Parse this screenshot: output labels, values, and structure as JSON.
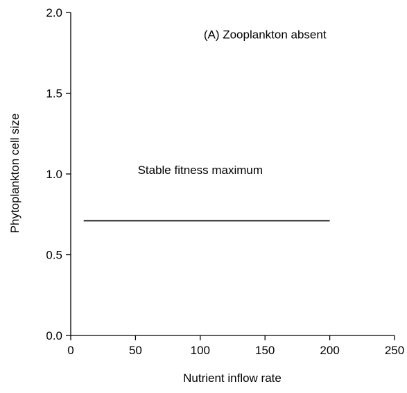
{
  "chart_data": {
    "type": "line",
    "title": "",
    "xlabel": "Nutrient inflow rate",
    "ylabel": "Phytoplankton cell size",
    "xlim": [
      0,
      250
    ],
    "ylim": [
      0,
      2
    ],
    "x_ticks": [
      0,
      50,
      100,
      150,
      200,
      250
    ],
    "y_ticks": [
      0,
      0.5,
      1,
      1.5,
      2
    ],
    "x_tick_labels": [
      "0",
      "50",
      "100",
      "150",
      "200",
      "250"
    ],
    "y_tick_labels": [
      "0.0",
      "0.5",
      "1.0",
      "1.5",
      "2.0"
    ],
    "grid": false,
    "series": [
      {
        "x": [
          10,
          200
        ],
        "y": [
          0.71,
          0.71
        ]
      }
    ],
    "annotations": [
      {
        "text": "(A) Zooplankton absent",
        "x": 150,
        "y": 1.84
      },
      {
        "text": "Stable fitness maximum",
        "x": 100,
        "y": 1.0
      }
    ],
    "colors": {
      "line": "#000000",
      "axis": "#000000"
    }
  }
}
